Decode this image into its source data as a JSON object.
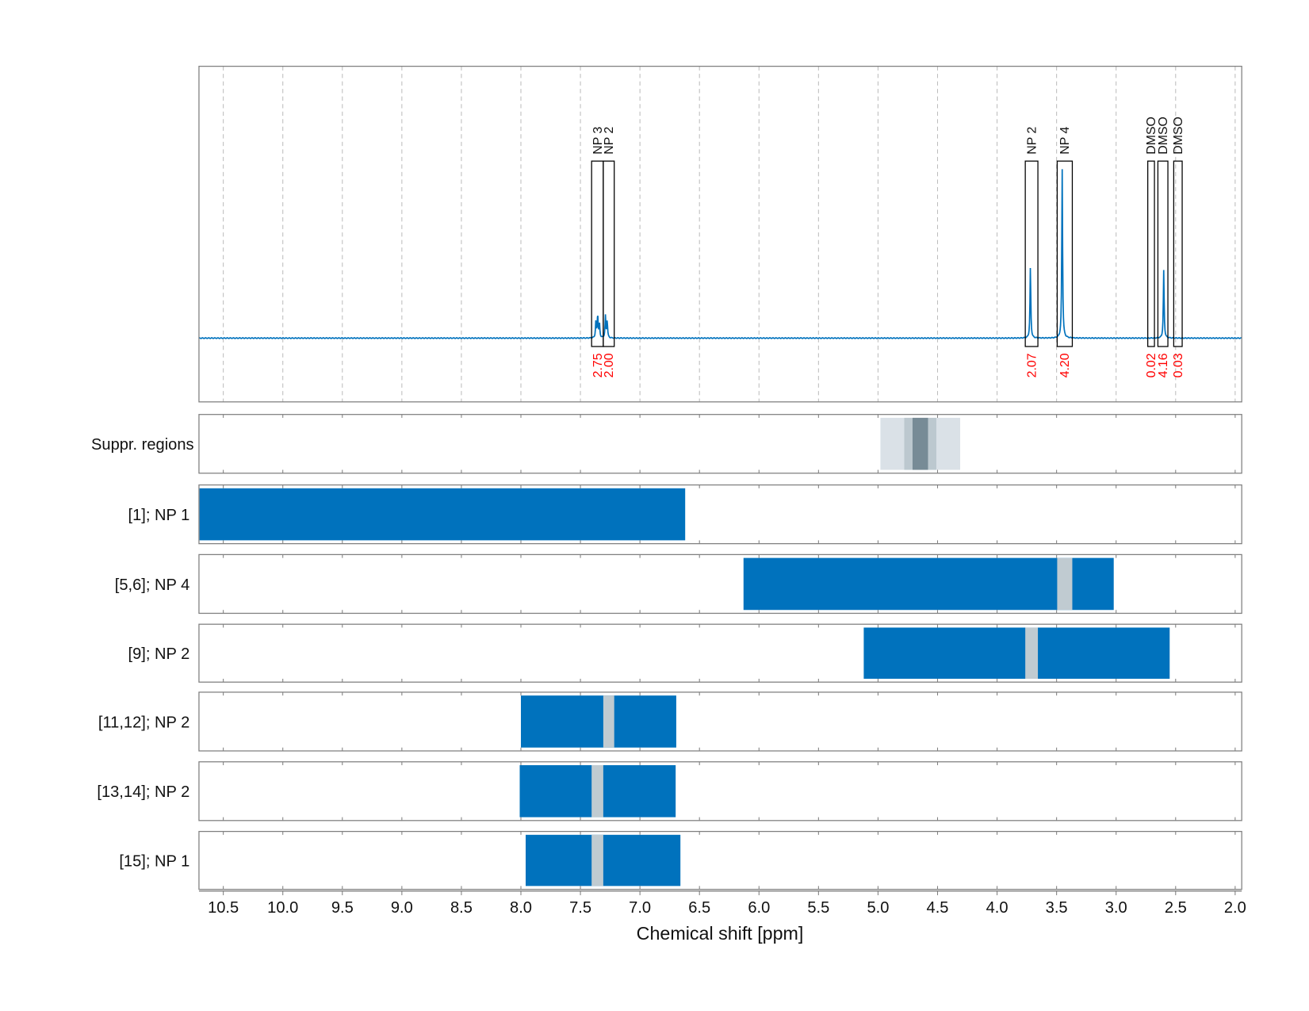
{
  "chart_data": [
    {
      "type": "line",
      "panel": "spectrum",
      "xlabel": "Chemical shift [ppm]",
      "xlim": [
        10.7,
        1.95
      ],
      "x_reversed": true,
      "x_ticks": [
        "10.5",
        "10.0",
        "9.5",
        "9.0",
        "8.5",
        "8.0",
        "7.5",
        "7.0",
        "6.5",
        "6.0",
        "5.5",
        "5.0",
        "4.5",
        "4.0",
        "3.5",
        "3.0",
        "2.5",
        "2.0"
      ],
      "grid": "vertical dashed",
      "line_color": "#0072bd",
      "peaks": [
        {
          "ppm": 7.37,
          "rel_intensity": 0.1
        },
        {
          "ppm": 7.355,
          "rel_intensity": 0.14
        },
        {
          "ppm": 7.34,
          "rel_intensity": 0.08
        },
        {
          "ppm": 7.29,
          "rel_intensity": 0.13
        },
        {
          "ppm": 7.275,
          "rel_intensity": 0.1
        },
        {
          "ppm": 3.72,
          "rel_intensity": 0.42
        },
        {
          "ppm": 3.453,
          "rel_intensity": 1.0
        },
        {
          "ppm": 2.6,
          "rel_intensity": 0.4
        }
      ],
      "regions": [
        {
          "label": "NP 3",
          "from": 7.406,
          "to": 7.308,
          "integral": "2.75"
        },
        {
          "label": "NP 2",
          "from": 7.308,
          "to": 7.216,
          "integral": "2.00"
        },
        {
          "label": "NP 2",
          "from": 3.763,
          "to": 3.657,
          "integral": "2.07"
        },
        {
          "label": "NP 4",
          "from": 3.495,
          "to": 3.368,
          "integral": "4.20"
        },
        {
          "label": "DMSO",
          "from": 2.734,
          "to": 2.678,
          "integral": "0.02"
        },
        {
          "label": "DMSO",
          "from": 2.649,
          "to": 2.565,
          "integral": "4.16"
        },
        {
          "label": "DMSO",
          "from": 2.516,
          "to": 2.445,
          "integral": "0.03"
        }
      ],
      "integral_color": "#ff0000"
    },
    {
      "type": "bar",
      "panel": "regions",
      "orientation": "horizontal ranges",
      "rows": [
        {
          "label": "Suppr. regions",
          "segments": [
            {
              "from": 4.98,
              "to": 4.31,
              "color": "#dae1e7"
            },
            {
              "from": 4.78,
              "to": 4.51,
              "color": "#bcc8cf"
            },
            {
              "from": 4.71,
              "to": 4.58,
              "color": "#778b96"
            }
          ]
        },
        {
          "label": "[1]; NP 1",
          "segments": [
            {
              "from": 10.7,
              "to": 6.62,
              "color": "#0072bd"
            }
          ]
        },
        {
          "label": "[5,6]; NP 4",
          "segments": [
            {
              "from": 6.13,
              "to": 3.02,
              "color": "#0072bd"
            },
            {
              "from": 3.495,
              "to": 3.368,
              "color": "#c0cbd1"
            }
          ]
        },
        {
          "label": "[9]; NP 2",
          "segments": [
            {
              "from": 5.12,
              "to": 2.55,
              "color": "#0072bd"
            },
            {
              "from": 3.763,
              "to": 3.657,
              "color": "#c0cbd1"
            }
          ]
        },
        {
          "label": "[11,12]; NP 2",
          "segments": [
            {
              "from": 8.0,
              "to": 6.695,
              "color": "#0072bd"
            },
            {
              "from": 7.308,
              "to": 7.216,
              "color": "#c0cbd1"
            }
          ]
        },
        {
          "label": "[13,14]; NP 2",
          "segments": [
            {
              "from": 8.01,
              "to": 6.7,
              "color": "#0072bd"
            },
            {
              "from": 7.406,
              "to": 7.308,
              "color": "#c0cbd1"
            }
          ]
        },
        {
          "label": "[15]; NP 1",
          "segments": [
            {
              "from": 7.96,
              "to": 6.66,
              "color": "#0072bd"
            },
            {
              "from": 7.406,
              "to": 7.308,
              "color": "#c0cbd1"
            }
          ]
        }
      ]
    }
  ]
}
